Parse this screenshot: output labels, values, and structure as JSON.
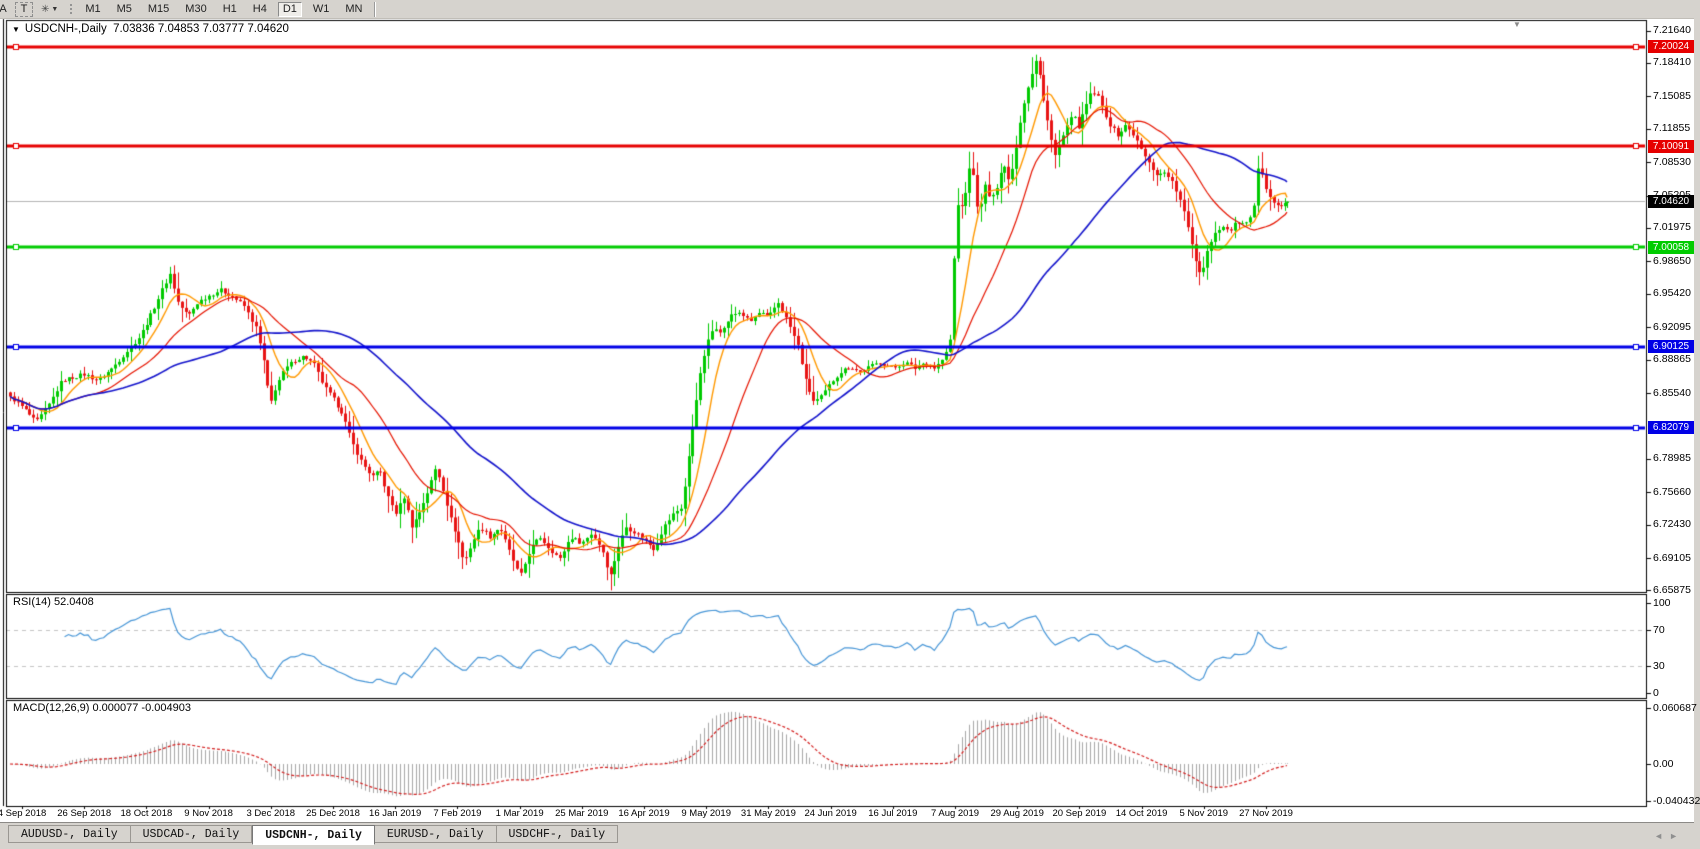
{
  "toolbar": {
    "edge_button": "A",
    "text_button": "T",
    "format_glyph": "✳",
    "dropdown_caret": "▼",
    "timeframes": [
      "M1",
      "M5",
      "M15",
      "M30",
      "H1",
      "H4",
      "D1",
      "W1",
      "MN"
    ],
    "active_timeframe": "D1"
  },
  "window": {
    "dropdown_icon": "▼",
    "symbol_label": "USDCNH-,Daily",
    "quote_string": "7.03836 7.04853 7.03777 7.04620",
    "shift_marker": "▼"
  },
  "tabs": {
    "items": [
      {
        "label": "AUDUSD-, Daily",
        "active": false
      },
      {
        "label": "USDCAD-, Daily",
        "active": false
      },
      {
        "label": "USDCNH-, Daily",
        "active": true
      },
      {
        "label": "EURUSD-, Daily",
        "active": false
      },
      {
        "label": "USDCHF-, Daily",
        "active": false
      }
    ],
    "scroll_left_icon": "◄",
    "scroll_right_icon": "►"
  },
  "chart_data": {
    "type": "candlestick",
    "symbol": "USDCNH-",
    "timeframe": "Daily",
    "ohlc_display": {
      "open": "7.03836",
      "high": "7.04853",
      "low": "7.03777",
      "close": "7.04620"
    },
    "y_range": [
      6.65875,
      7.2164
    ],
    "y_axis_ticks": [
      "7.21640",
      "7.18410",
      "7.15085",
      "7.11855",
      "7.08530",
      "7.05205",
      "7.01975",
      "6.98650",
      "6.95420",
      "6.92095",
      "6.88865",
      "6.85540",
      "6.78985",
      "6.75660",
      "6.72430",
      "6.69105",
      "6.65875"
    ],
    "x_axis_dates": [
      "4 Sep 2018",
      "26 Sep 2018",
      "18 Oct 2018",
      "9 Nov 2018",
      "3 Dec 2018",
      "25 Dec 2018",
      "16 Jan 2019",
      "7 Feb 2019",
      "1 Mar 2019",
      "25 Mar 2019",
      "16 Apr 2019",
      "9 May 2019",
      "31 May 2019",
      "24 Jun 2019",
      "16 Jul 2019",
      "7 Aug 2019",
      "29 Aug 2019",
      "20 Sep 2019",
      "14 Oct 2019",
      "5 Nov 2019",
      "27 Nov 2019"
    ],
    "horizontal_levels": [
      {
        "price": 7.20024,
        "label": "7.20024",
        "color": "#e60000"
      },
      {
        "price": 7.10091,
        "label": "7.10091",
        "color": "#e60000"
      },
      {
        "price": 7.00058,
        "label": "7.00058",
        "color": "#00cc00"
      },
      {
        "price": 6.90125,
        "label": "6.90125",
        "color": "#0000e6"
      },
      {
        "price": 6.82079,
        "label": "6.82079",
        "color": "#0000e6"
      }
    ],
    "current_price": {
      "price": 7.0462,
      "label": "7.04620",
      "badge_bg": "#000000",
      "line_color": "#b4b4b4"
    },
    "candle_colors": {
      "up": "#00ca00",
      "down": "#e81414"
    },
    "moving_averages": [
      {
        "period": 8,
        "color": "#ff9900",
        "width": 1.4
      },
      {
        "period": 21,
        "color": "#e61400",
        "width": 1.2
      },
      {
        "period": 55,
        "color": "#1414cc",
        "width": 1.6
      }
    ],
    "price_anchors": [
      [
        10,
        6.852
      ],
      [
        24,
        6.84
      ],
      [
        36,
        6.826
      ],
      [
        48,
        6.842
      ],
      [
        62,
        6.868
      ],
      [
        84,
        6.874
      ],
      [
        98,
        6.868
      ],
      [
        112,
        6.88
      ],
      [
        126,
        6.896
      ],
      [
        140,
        6.912
      ],
      [
        152,
        6.936
      ],
      [
        162,
        6.958
      ],
      [
        170,
        6.974
      ],
      [
        178,
        6.945
      ],
      [
        188,
        6.932
      ],
      [
        198,
        6.946
      ],
      [
        208,
        6.952
      ],
      [
        220,
        6.958
      ],
      [
        232,
        6.952
      ],
      [
        244,
        6.942
      ],
      [
        256,
        6.92
      ],
      [
        264,
        6.885
      ],
      [
        270,
        6.843
      ],
      [
        276,
        6.862
      ],
      [
        284,
        6.878
      ],
      [
        294,
        6.888
      ],
      [
        304,
        6.892
      ],
      [
        314,
        6.884
      ],
      [
        324,
        6.862
      ],
      [
        333,
        6.85
      ],
      [
        342,
        6.836
      ],
      [
        352,
        6.806
      ],
      [
        362,
        6.786
      ],
      [
        372,
        6.772
      ],
      [
        380,
        6.778
      ],
      [
        388,
        6.752
      ],
      [
        396,
        6.736
      ],
      [
        404,
        6.752
      ],
      [
        412,
        6.722
      ],
      [
        420,
        6.738
      ],
      [
        428,
        6.758
      ],
      [
        436,
        6.782
      ],
      [
        444,
        6.756
      ],
      [
        450,
        6.732
      ],
      [
        457,
        6.712
      ],
      [
        464,
        6.686
      ],
      [
        472,
        6.706
      ],
      [
        480,
        6.722
      ],
      [
        490,
        6.712
      ],
      [
        500,
        6.722
      ],
      [
        510,
        6.696
      ],
      [
        520,
        6.672
      ],
      [
        530,
        6.7
      ],
      [
        540,
        6.712
      ],
      [
        550,
        6.7
      ],
      [
        560,
        6.69
      ],
      [
        570,
        6.712
      ],
      [
        582,
        6.706
      ],
      [
        592,
        6.716
      ],
      [
        602,
        6.7
      ],
      [
        610,
        6.672
      ],
      [
        618,
        6.702
      ],
      [
        626,
        6.722
      ],
      [
        636,
        6.716
      ],
      [
        644,
        6.71
      ],
      [
        654,
        6.7
      ],
      [
        664,
        6.722
      ],
      [
        674,
        6.736
      ],
      [
        682,
        6.742
      ],
      [
        690,
        6.802
      ],
      [
        698,
        6.862
      ],
      [
        706,
        6.902
      ],
      [
        714,
        6.922
      ],
      [
        722,
        6.916
      ],
      [
        730,
        6.932
      ],
      [
        740,
        6.936
      ],
      [
        750,
        6.926
      ],
      [
        760,
        6.936
      ],
      [
        768,
        6.93
      ],
      [
        778,
        6.946
      ],
      [
        788,
        6.926
      ],
      [
        798,
        6.902
      ],
      [
        806,
        6.866
      ],
      [
        814,
        6.846
      ],
      [
        822,
        6.852
      ],
      [
        831,
        6.866
      ],
      [
        840,
        6.876
      ],
      [
        850,
        6.882
      ],
      [
        860,
        6.876
      ],
      [
        870,
        6.882
      ],
      [
        880,
        6.886
      ],
      [
        893,
        6.88
      ],
      [
        905,
        6.886
      ],
      [
        915,
        6.88
      ],
      [
        925,
        6.886
      ],
      [
        935,
        6.88
      ],
      [
        945,
        6.892
      ],
      [
        951,
        6.912
      ],
      [
        955,
        7.022
      ],
      [
        959,
        7.052
      ],
      [
        963,
        7.038
      ],
      [
        967,
        7.062
      ],
      [
        971,
        7.092
      ],
      [
        975,
        7.056
      ],
      [
        979,
        7.032
      ],
      [
        985,
        7.062
      ],
      [
        991,
        7.046
      ],
      [
        997,
        7.062
      ],
      [
        1003,
        7.086
      ],
      [
        1009,
        7.066
      ],
      [
        1015,
        7.092
      ],
      [
        1021,
        7.132
      ],
      [
        1027,
        7.158
      ],
      [
        1033,
        7.178
      ],
      [
        1037,
        7.19
      ],
      [
        1041,
        7.162
      ],
      [
        1045,
        7.136
      ],
      [
        1049,
        7.12
      ],
      [
        1055,
        7.092
      ],
      [
        1061,
        7.106
      ],
      [
        1067,
        7.122
      ],
      [
        1073,
        7.132
      ],
      [
        1079,
        7.12
      ],
      [
        1086,
        7.142
      ],
      [
        1092,
        7.156
      ],
      [
        1098,
        7.15
      ],
      [
        1104,
        7.136
      ],
      [
        1110,
        7.122
      ],
      [
        1118,
        7.112
      ],
      [
        1126,
        7.122
      ],
      [
        1134,
        7.112
      ],
      [
        1142,
        7.096
      ],
      [
        1150,
        7.082
      ],
      [
        1158,
        7.072
      ],
      [
        1166,
        7.076
      ],
      [
        1174,
        7.062
      ],
      [
        1182,
        7.042
      ],
      [
        1190,
        7.012
      ],
      [
        1196,
        6.986
      ],
      [
        1201,
        6.972
      ],
      [
        1207,
        6.996
      ],
      [
        1213,
        7.012
      ],
      [
        1221,
        7.022
      ],
      [
        1229,
        7.016
      ],
      [
        1237,
        7.026
      ],
      [
        1245,
        7.022
      ],
      [
        1253,
        7.032
      ],
      [
        1259,
        7.086
      ],
      [
        1265,
        7.062
      ],
      [
        1273,
        7.046
      ],
      [
        1281,
        7.04
      ],
      [
        1287,
        7.046
      ]
    ],
    "indicators": {
      "rsi": {
        "label": "RSI(14) 52.0408",
        "period": 14,
        "levels": [
          70,
          30
        ],
        "axis_ticks": [
          {
            "text": "100",
            "value": 100
          },
          {
            "text": "70",
            "value": 70
          },
          {
            "text": "30",
            "value": 30
          },
          {
            "text": "0",
            "value": 0
          }
        ],
        "line_color": "#4796d7",
        "level_line_color": "#c4c4c4"
      },
      "macd": {
        "label": "MACD(12,26,9) 0.000077 -0.004903",
        "fast": 12,
        "slow": 26,
        "signal": 9,
        "axis_ticks": [
          {
            "text": "0.060687",
            "value": 0.060687
          },
          {
            "text": "0.00",
            "value": 0
          },
          {
            "text": "-0.040432",
            "value": -0.040432
          }
        ],
        "histogram_color": "#a8a8a8",
        "signal_color": "#d42020"
      }
    }
  }
}
